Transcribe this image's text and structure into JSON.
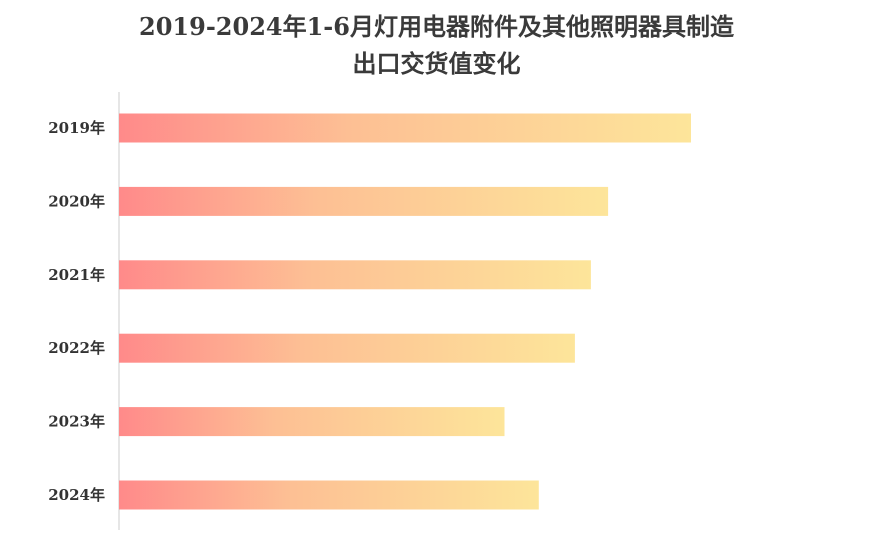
{
  "chart_data": {
    "type": "bar",
    "orientation": "horizontal",
    "title_lines": [
      "2019-2024年1-6月灯用电器附件及其他照明器具制造",
      "出口交货值变化"
    ],
    "categories": [
      "2019年",
      "2020年",
      "2021年",
      "2022年",
      "2023年",
      "2024年"
    ],
    "values": [
      100,
      85.5,
      82.5,
      79.7,
      67.4,
      73.4
    ],
    "xlabel": "",
    "ylabel": "",
    "xlim": [
      0,
      100
    ],
    "grid": false,
    "legend": "none",
    "colors": {
      "bar_gradient_start": "#ff8a8a",
      "bar_gradient_mid": "#fdbf94",
      "bar_gradient_end": "#fde59a",
      "axis": "#cccccc",
      "text": "#333333"
    }
  }
}
